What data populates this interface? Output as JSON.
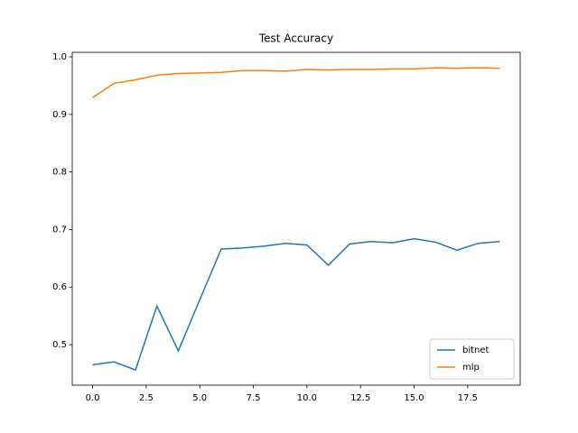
{
  "chart_data": {
    "type": "line",
    "title": "Test Accuracy",
    "x": [
      0,
      1,
      2,
      3,
      4,
      5,
      6,
      7,
      8,
      9,
      10,
      11,
      12,
      13,
      14,
      15,
      16,
      17,
      18,
      19
    ],
    "series": [
      {
        "name": "bitnet",
        "color": "#1f77b4",
        "values": [
          0.465,
          0.47,
          0.456,
          0.567,
          0.489,
          0.578,
          0.666,
          0.668,
          0.671,
          0.676,
          0.673,
          0.638,
          0.675,
          0.679,
          0.677,
          0.684,
          0.678,
          0.664,
          0.676,
          0.679
        ]
      },
      {
        "name": "mlp",
        "color": "#ff7f0e",
        "values": [
          0.929,
          0.954,
          0.96,
          0.968,
          0.971,
          0.972,
          0.973,
          0.976,
          0.976,
          0.975,
          0.978,
          0.977,
          0.978,
          0.978,
          0.979,
          0.979,
          0.981,
          0.98,
          0.981,
          0.98
        ]
      }
    ],
    "xlim": [
      -0.95,
      19.95
    ],
    "xticks": [
      {
        "value": 0,
        "label": "0.0"
      },
      2.5,
      {
        "value": 5,
        "label": "5.0"
      },
      7.5,
      {
        "value": 10,
        "label": "10.0"
      },
      12.5,
      {
        "value": 15,
        "label": "15.0"
      },
      17.5
    ],
    "ylim": [
      0.4295,
      1.0078
    ],
    "yticks": [
      0.5,
      0.6,
      0.7,
      0.8,
      0.9,
      {
        "value": 1,
        "label": "1.0"
      }
    ],
    "legend": "lower right"
  }
}
